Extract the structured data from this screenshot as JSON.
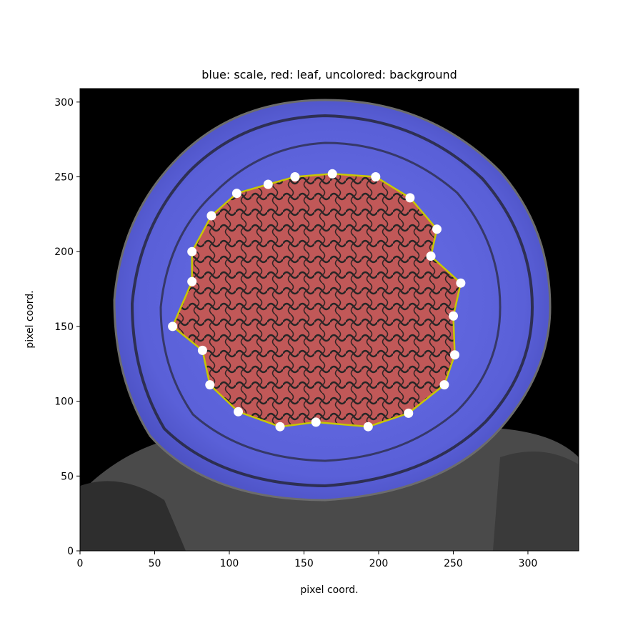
{
  "chart_data": {
    "type": "scatter",
    "title": "blue: scale, red: leaf, uncolored: background",
    "xlabel": "pixel coord.",
    "ylabel": "pixel coord.",
    "xlim": [
      0,
      334
    ],
    "ylim": [
      0,
      309
    ],
    "x_ticks": [
      "0",
      "50",
      "100",
      "150",
      "200",
      "250",
      "300"
    ],
    "y_ticks": [
      "0",
      "50",
      "100",
      "150",
      "200",
      "250",
      "300"
    ],
    "grid": false,
    "background_image": "grayscale cross-section with blue scale overlay and red leaf overlay",
    "colors": {
      "scale": "#5c63e0",
      "leaf": "#e06060",
      "contour": "#c8c800",
      "markers": "#ffffff",
      "background": "#000000"
    },
    "markers": [
      {
        "x": 169,
        "y": 252
      },
      {
        "x": 198,
        "y": 250
      },
      {
        "x": 221,
        "y": 236
      },
      {
        "x": 239,
        "y": 215
      },
      {
        "x": 235,
        "y": 197
      },
      {
        "x": 255,
        "y": 179
      },
      {
        "x": 250,
        "y": 157
      },
      {
        "x": 251,
        "y": 131
      },
      {
        "x": 244,
        "y": 111
      },
      {
        "x": 220,
        "y": 92
      },
      {
        "x": 193,
        "y": 83
      },
      {
        "x": 158,
        "y": 86
      },
      {
        "x": 134,
        "y": 83
      },
      {
        "x": 106,
        "y": 93
      },
      {
        "x": 87,
        "y": 111
      },
      {
        "x": 82,
        "y": 134
      },
      {
        "x": 62,
        "y": 150
      },
      {
        "x": 75,
        "y": 180
      },
      {
        "x": 75,
        "y": 200
      },
      {
        "x": 88,
        "y": 224
      },
      {
        "x": 105,
        "y": 239
      },
      {
        "x": 126,
        "y": 245
      },
      {
        "x": 144,
        "y": 250
      }
    ]
  }
}
